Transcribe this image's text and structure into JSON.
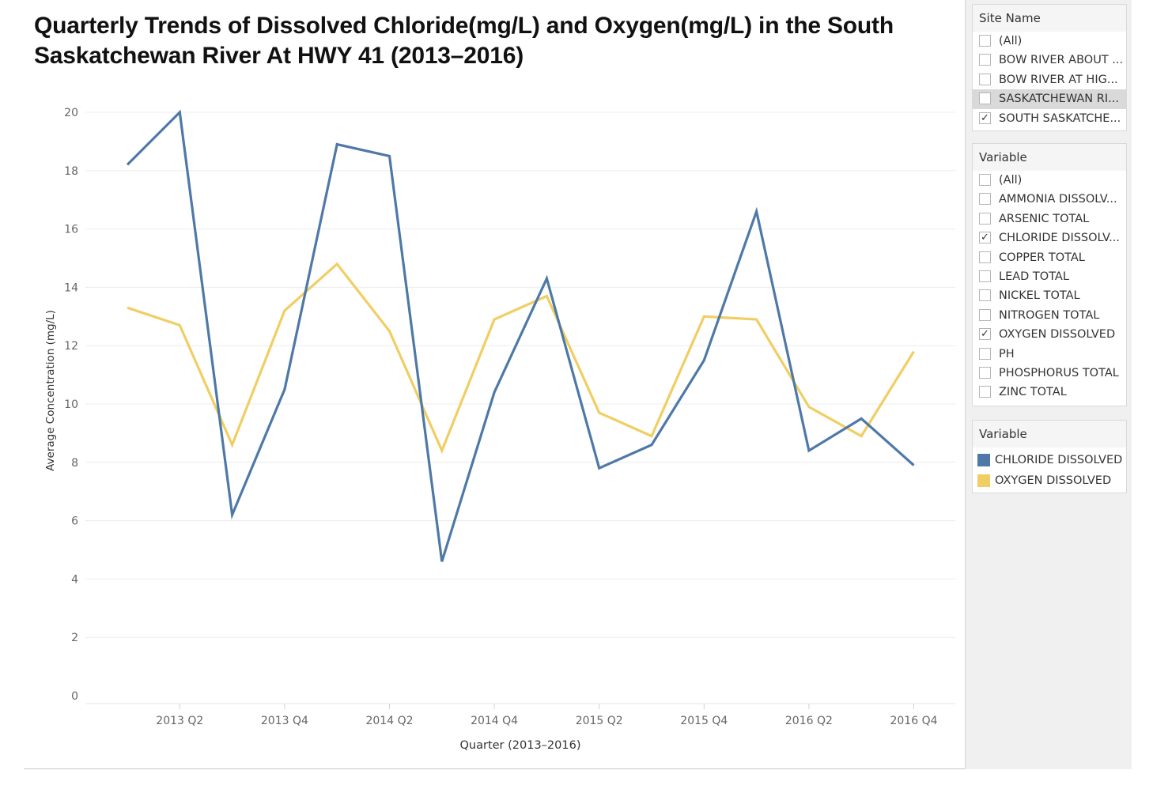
{
  "title": "Quarterly Trends of Dissolved Chloride(mg/L) and Oxygen(mg/L) in the South Saskatchewan River At HWY 41 (2013–2016)",
  "colors": {
    "chloride": "#4e79a7",
    "oxygen": "#f1ce63",
    "grid": "#ececec",
    "axis_text": "#666666"
  },
  "sidebar": {
    "site_filter": {
      "title": "Site Name",
      "items": [
        {
          "label": "(All)",
          "checked": false,
          "highlighted": false
        },
        {
          "label": "BOW RIVER ABOUT ...",
          "checked": false,
          "highlighted": false
        },
        {
          "label": "BOW RIVER AT HIG...",
          "checked": false,
          "highlighted": false
        },
        {
          "label": "SASKATCHEWAN RI...",
          "checked": false,
          "highlighted": true
        },
        {
          "label": "SOUTH SASKATCHE...",
          "checked": true,
          "highlighted": false
        }
      ]
    },
    "variable_filter": {
      "title": "Variable",
      "items": [
        {
          "label": "(All)",
          "checked": false
        },
        {
          "label": "AMMONIA DISSOLV...",
          "checked": false
        },
        {
          "label": "ARSENIC TOTAL",
          "checked": false
        },
        {
          "label": "CHLORIDE DISSOLV...",
          "checked": true
        },
        {
          "label": "COPPER TOTAL",
          "checked": false
        },
        {
          "label": "LEAD TOTAL",
          "checked": false
        },
        {
          "label": "NICKEL TOTAL",
          "checked": false
        },
        {
          "label": "NITROGEN TOTAL",
          "checked": false
        },
        {
          "label": "OXYGEN DISSOLVED",
          "checked": true
        },
        {
          "label": "PH",
          "checked": false
        },
        {
          "label": "PHOSPHORUS TOTAL",
          "checked": false
        },
        {
          "label": "ZINC TOTAL",
          "checked": false
        }
      ]
    },
    "legend": {
      "title": "Variable",
      "items": [
        {
          "label": "CHLORIDE DISSOLVED",
          "color": "#4e79a7"
        },
        {
          "label": "OXYGEN DISSOLVED",
          "color": "#f1ce63"
        }
      ]
    }
  },
  "chart_data": {
    "type": "line",
    "xlabel": "Quarter (2013–2016)",
    "ylabel": "Average Concentration (mg/L)",
    "ylim": [
      0,
      20
    ],
    "yticks": [
      0,
      2,
      4,
      6,
      8,
      10,
      12,
      14,
      16,
      18,
      20
    ],
    "grid": true,
    "x": [
      "2013 Q1",
      "2013 Q2",
      "2013 Q3",
      "2013 Q4",
      "2014 Q1",
      "2014 Q2",
      "2014 Q3",
      "2014 Q4",
      "2015 Q1",
      "2015 Q2",
      "2015 Q3",
      "2015 Q4",
      "2016 Q1",
      "2016 Q2",
      "2016 Q3",
      "2016 Q4"
    ],
    "xtick_labels": [
      "2013 Q2",
      "2013 Q4",
      "2014 Q2",
      "2014 Q4",
      "2015 Q2",
      "2015 Q4",
      "2016 Q2",
      "2016 Q4"
    ],
    "series": [
      {
        "name": "CHLORIDE DISSOLVED",
        "color": "#4e79a7",
        "values": [
          18.2,
          20.0,
          6.2,
          10.5,
          18.9,
          18.5,
          4.6,
          10.4,
          14.3,
          7.8,
          8.6,
          11.5,
          16.6,
          8.4,
          9.5,
          7.9
        ]
      },
      {
        "name": "OXYGEN DISSOLVED",
        "color": "#f1ce63",
        "values": [
          13.3,
          12.7,
          8.6,
          13.2,
          14.8,
          12.5,
          8.4,
          12.9,
          13.7,
          9.7,
          8.9,
          13.0,
          12.9,
          9.9,
          8.9,
          11.8
        ]
      }
    ]
  }
}
